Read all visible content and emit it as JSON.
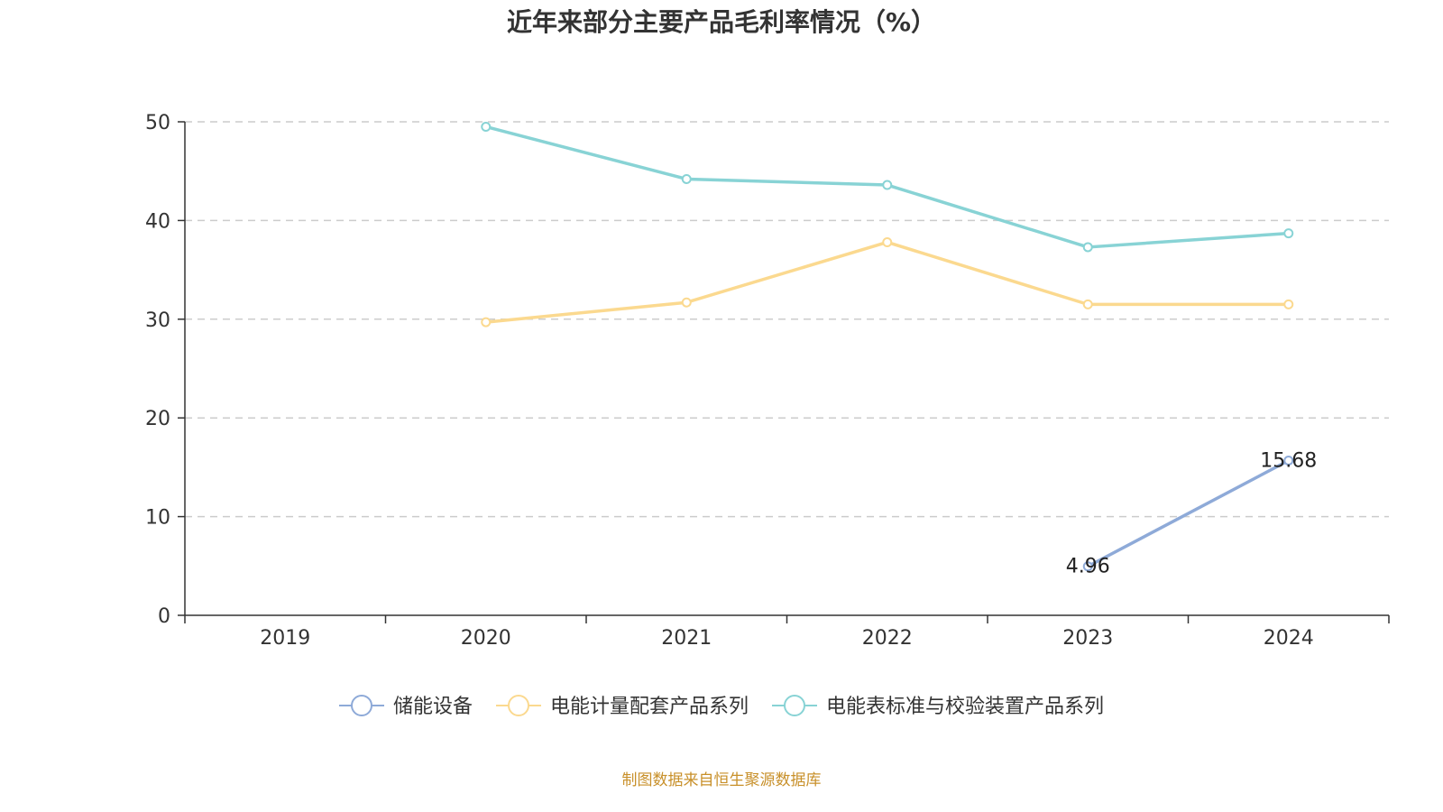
{
  "chart_data": {
    "type": "line",
    "title": "近年来部分主要产品毛利率情况（%）",
    "xlabel": "",
    "ylabel": "",
    "ylim": [
      0,
      50
    ],
    "yticks": [
      "0",
      "10",
      "20",
      "30",
      "40",
      "50"
    ],
    "categories": [
      "2019",
      "2020",
      "2021",
      "2022",
      "2023",
      "2024"
    ],
    "grid": true,
    "legend_position": "bottom",
    "series": [
      {
        "name": "储能设备",
        "color": "#8eaad8",
        "values": [
          null,
          null,
          null,
          null,
          4.96,
          15.68
        ],
        "labels": [
          null,
          null,
          null,
          null,
          "4.96",
          "15.68"
        ]
      },
      {
        "name": "电能计量配套产品系列",
        "color": "#fbd98f",
        "values": [
          null,
          29.7,
          31.7,
          37.8,
          31.5,
          31.5
        ],
        "labels": [
          null,
          null,
          null,
          null,
          null,
          null
        ]
      },
      {
        "name": "电能表标准与校验装置产品系列",
        "color": "#88d3d5",
        "values": [
          null,
          49.5,
          44.2,
          43.6,
          37.3,
          38.7
        ],
        "labels": [
          null,
          null,
          null,
          null,
          null,
          null
        ]
      }
    ]
  },
  "source": "制图数据来自恒生聚源数据库"
}
